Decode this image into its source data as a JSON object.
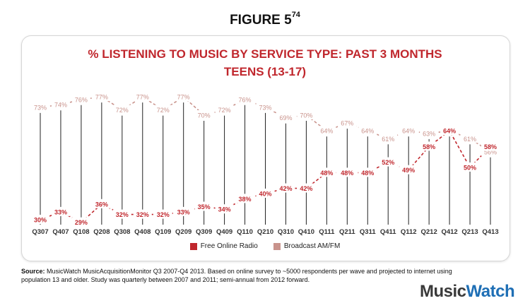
{
  "figure": {
    "title": "FIGURE 5",
    "superscript": "74"
  },
  "chart_data": {
    "type": "line",
    "title": "% LISTENING TO MUSIC BY SERVICE TYPE: PAST 3 MONTHS",
    "subtitle": "TEENS (13-17)",
    "categories": [
      "Q307",
      "Q407",
      "Q108",
      "Q208",
      "Q308",
      "Q408",
      "Q109",
      "Q209",
      "Q309",
      "Q409",
      "Q110",
      "Q210",
      "Q310",
      "Q410",
      "Q111",
      "Q211",
      "Q311",
      "Q411",
      "Q112",
      "Q212",
      "Q412",
      "Q213",
      "Q413"
    ],
    "series": [
      {
        "name": "Free Online Radio",
        "color": "#c0272d",
        "values": [
          30,
          33,
          29,
          36,
          32,
          32,
          32,
          33,
          35,
          34,
          38,
          40,
          42,
          42,
          48,
          48,
          48,
          52,
          49,
          58,
          64,
          50,
          58
        ]
      },
      {
        "name": "Broadcast AM/FM",
        "color": "#c9938c",
        "values": [
          73,
          74,
          76,
          77,
          72,
          77,
          72,
          77,
          70,
          72,
          76,
          73,
          69,
          70,
          64,
          67,
          64,
          61,
          64,
          63,
          64,
          61,
          56
        ]
      }
    ],
    "legend_position": "bottom",
    "ylim": [
      0,
      100
    ],
    "grid": false
  },
  "legend": {
    "items": [
      "Free Online Radio",
      "Broadcast AM/FM"
    ]
  },
  "source": {
    "label": "Source:",
    "text": " MusicWatch MusicAcquisitionMonitor Q3 2007-Q4 2013. Based on online survey to ~5000 respondents per wave and projected to internet using population 13 and older. Study was quarterly between 2007 and 2011; semi-annual from 2012 forward."
  },
  "logo": {
    "part1": "Music",
    "part2": "Watch"
  }
}
